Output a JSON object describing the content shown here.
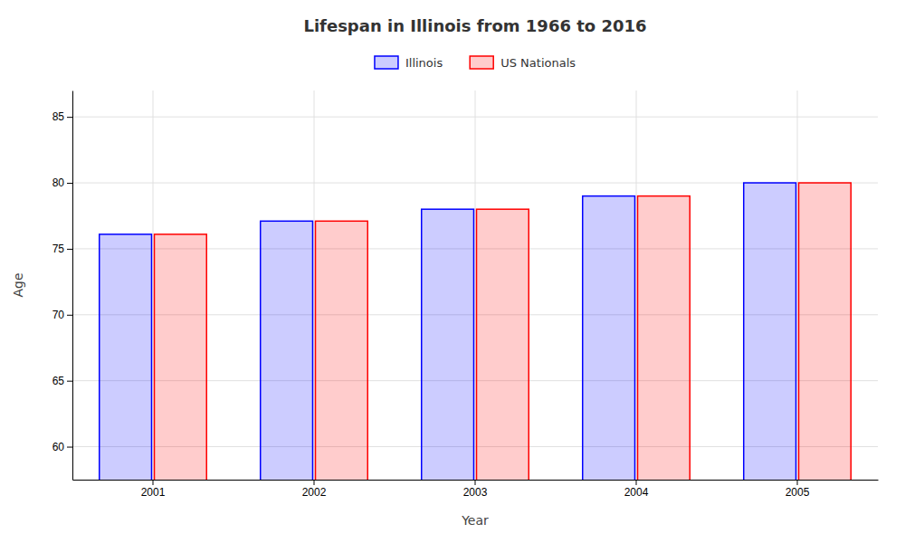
{
  "chart_data": {
    "type": "bar",
    "title": "Lifespan in Illinois from 1966 to 2016",
    "xlabel": "Year",
    "ylabel": "Age",
    "categories": [
      "2001",
      "2002",
      "2003",
      "2004",
      "2005"
    ],
    "series": [
      {
        "name": "Illinois",
        "color": "#0000ff",
        "values": [
          76.1,
          77.1,
          78.0,
          79.0,
          80.0
        ]
      },
      {
        "name": "US Nationals",
        "color": "#ff0000",
        "values": [
          76.1,
          77.1,
          78.0,
          79.0,
          80.0
        ]
      }
    ],
    "ylim": [
      57.5,
      87
    ],
    "yticks": [
      60,
      65,
      70,
      75,
      80,
      85
    ],
    "grid": true,
    "legend": "top"
  }
}
